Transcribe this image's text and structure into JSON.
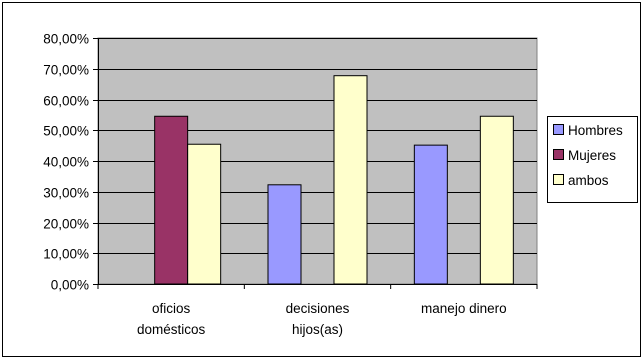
{
  "chart_data": {
    "type": "bar",
    "title": "",
    "xlabel": "",
    "ylabel": "",
    "categories": [
      [
        "oficios",
        "domésticos"
      ],
      [
        "decisiones",
        "hijos(as)"
      ],
      [
        "manejo dinero"
      ]
    ],
    "series": [
      {
        "name": "Hombres",
        "color": "#9999ff",
        "values": [
          0,
          32.26,
          45.16
        ]
      },
      {
        "name": "Mujeres",
        "color": "#993366",
        "values": [
          54.55,
          0,
          0
        ]
      },
      {
        "name": "ambos",
        "color": "#ffffcc",
        "values": [
          45.45,
          67.74,
          54.55
        ]
      }
    ],
    "ylim": [
      0,
      80
    ],
    "yticks": [
      0,
      10,
      20,
      30,
      40,
      50,
      60,
      70,
      80
    ],
    "ytick_labels": [
      "0,00%",
      "10,00%",
      "20,00%",
      "30,00%",
      "40,00%",
      "50,00%",
      "60,00%",
      "70,00%",
      "80,00%"
    ],
    "plot_background": "#c0c0c0",
    "grid": true,
    "legend_position": "right"
  }
}
